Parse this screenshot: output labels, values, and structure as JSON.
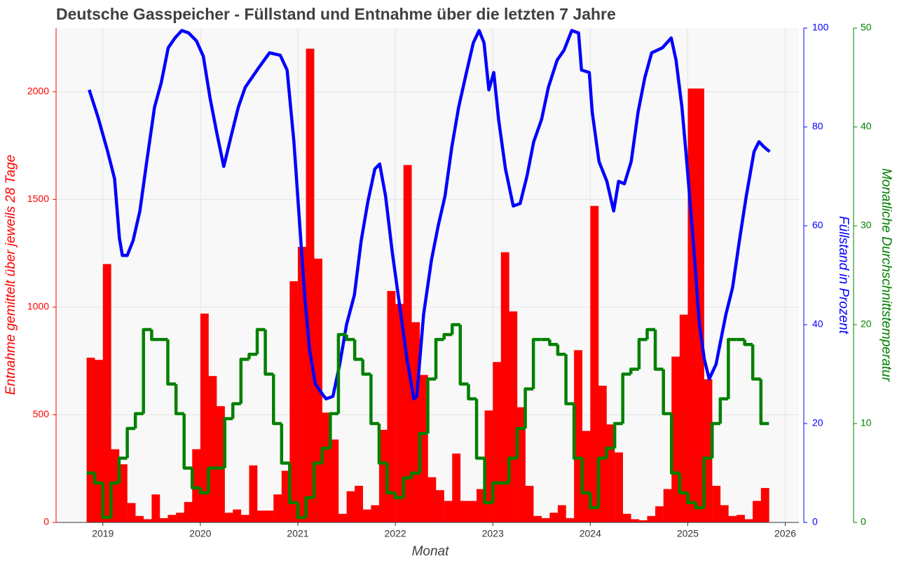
{
  "chart_data": {
    "type": "combo",
    "title": "Deutsche Gasspeicher - Füllstand und Entnahme über die letzten 7 Jahre",
    "xlabel": "Monat",
    "ylabel": "Entnahme gemittelt über jeweils 28 Tage",
    "y2label": "Füllstand in Prozent",
    "y3label": "Monatliche Durchschnittstemperatur",
    "xlim": [
      2018.52,
      2026.14
    ],
    "xticks": [
      2019,
      2020,
      2021,
      2022,
      2023,
      2024,
      2025,
      2026
    ],
    "ylim": [
      0,
      2296
    ],
    "yticks": [
      0,
      500,
      1000,
      1500,
      2000
    ],
    "y2lim": [
      0,
      100
    ],
    "y2ticks": [
      0,
      20,
      40,
      60,
      80,
      100
    ],
    "y3lim": [
      0,
      50
    ],
    "y3ticks": [
      0,
      10,
      20,
      30,
      40,
      50
    ],
    "grid": true,
    "y_color": "#ff0000",
    "y2_color": "#0000ff",
    "y3_color": "#008000",
    "x": [
      2018.875,
      2018.958,
      2019.042,
      2019.125,
      2019.208,
      2019.292,
      2019.375,
      2019.458,
      2019.542,
      2019.625,
      2019.708,
      2019.792,
      2019.875,
      2019.958,
      2020.042,
      2020.125,
      2020.208,
      2020.292,
      2020.375,
      2020.458,
      2020.542,
      2020.625,
      2020.708,
      2020.792,
      2020.875,
      2020.958,
      2021.042,
      2021.125,
      2021.208,
      2021.292,
      2021.375,
      2021.458,
      2021.542,
      2021.625,
      2021.708,
      2021.792,
      2021.875,
      2021.958,
      2022.042,
      2022.125,
      2022.208,
      2022.292,
      2022.375,
      2022.458,
      2022.542,
      2022.625,
      2022.708,
      2022.792,
      2022.875,
      2022.958,
      2023.042,
      2023.125,
      2023.208,
      2023.292,
      2023.375,
      2023.458,
      2023.542,
      2023.625,
      2023.708,
      2023.792,
      2023.875,
      2023.958,
      2024.042,
      2024.125,
      2024.208,
      2024.292,
      2024.375,
      2024.458,
      2024.542,
      2024.625,
      2024.708,
      2024.792,
      2024.875,
      2024.958,
      2025.042,
      2025.125,
      2025.208,
      2025.292,
      2025.375,
      2025.458,
      2025.542,
      2025.625,
      2025.708,
      2025.792
    ],
    "series": [
      {
        "type": "bar",
        "axis": "y",
        "color": "#ff0000",
        "values": [
          765,
          755,
          1200,
          340,
          270,
          90,
          30,
          15,
          130,
          20,
          35,
          45,
          95,
          340,
          970,
          680,
          540,
          45,
          60,
          35,
          265,
          55,
          55,
          130,
          240,
          1120,
          1280,
          2200,
          1225,
          510,
          385,
          40,
          145,
          170,
          60,
          80,
          430,
          1075,
          1015,
          1660,
          930,
          685,
          210,
          150,
          100,
          320,
          100,
          100,
          155,
          520,
          745,
          1255,
          980,
          535,
          170,
          30,
          20,
          45,
          80,
          20,
          800,
          425,
          1470,
          635,
          455,
          325,
          40,
          15,
          10,
          30,
          75,
          155,
          770,
          965,
          2015,
          2015,
          665,
          170,
          80,
          30,
          35,
          15,
          100,
          160
        ]
      },
      {
        "type": "line",
        "axis": "y2",
        "color": "#0000ff",
        "x": [
          2018.86,
          2018.95,
          2019.05,
          2019.12,
          2019.17,
          2019.2,
          2019.25,
          2019.31,
          2019.38,
          2019.45,
          2019.53,
          2019.6,
          2019.67,
          2019.74,
          2019.81,
          2019.88,
          2019.96,
          2020.03,
          2020.1,
          2020.17,
          2020.24,
          2020.32,
          2020.39,
          2020.46,
          2020.53,
          2020.6,
          2020.71,
          2020.82,
          2020.89,
          2020.96,
          2021.02,
          2021.07,
          2021.12,
          2021.18,
          2021.25,
          2021.29,
          2021.36,
          2021.43,
          2021.5,
          2021.58,
          2021.65,
          2021.72,
          2021.79,
          2021.84,
          2021.9,
          2021.97,
          2022.04,
          2022.12,
          2022.19,
          2022.22,
          2022.29,
          2022.37,
          2022.44,
          2022.51,
          2022.58,
          2022.65,
          2022.73,
          2022.8,
          2022.86,
          2022.91,
          2022.96,
          2023.01,
          2023.06,
          2023.13,
          2023.21,
          2023.28,
          2023.35,
          2023.42,
          2023.5,
          2023.57,
          2023.66,
          2023.73,
          2023.81,
          2023.88,
          2023.91,
          2023.99,
          2024.02,
          2024.09,
          2024.17,
          2024.24,
          2024.29,
          2024.35,
          2024.42,
          2024.49,
          2024.56,
          2024.63,
          2024.74,
          2024.83,
          2024.88,
          2024.94,
          2024.99,
          2025.06,
          2025.12,
          2025.17,
          2025.22,
          2025.29,
          2025.39,
          2025.46,
          2025.53,
          2025.6,
          2025.68,
          2025.73,
          2025.78,
          2025.84
        ],
        "values": [
          87.5,
          82,
          75,
          69.5,
          57.5,
          54,
          54,
          57,
          63,
          73,
          84,
          89,
          96,
          98,
          99.5,
          99,
          97.4,
          94.3,
          85.8,
          78.7,
          72,
          78.5,
          84,
          88,
          90,
          92,
          95,
          94.5,
          91.5,
          77,
          60,
          46,
          35,
          28,
          26,
          25,
          25.5,
          32,
          40,
          46,
          57,
          65,
          71.5,
          72.5,
          66,
          54.5,
          44.5,
          33,
          25,
          25.5,
          42,
          53,
          60,
          66,
          76,
          84,
          91,
          97,
          99.5,
          97,
          87.5,
          91,
          81.5,
          71.5,
          64,
          64.5,
          70,
          77,
          81.5,
          88,
          93.5,
          95.5,
          99.5,
          99,
          91.5,
          91,
          83,
          73,
          69,
          63,
          69,
          68.5,
          73,
          83,
          90,
          95,
          96,
          98,
          93.5,
          84,
          73,
          56,
          40,
          33,
          29,
          32,
          42,
          47.5,
          57,
          66,
          75,
          77,
          76,
          75
        ]
      },
      {
        "type": "step",
        "axis": "y3",
        "color": "#008000",
        "values": [
          5,
          4,
          0.5,
          4,
          6.5,
          9.5,
          11,
          19.5,
          18.5,
          18.5,
          14,
          11,
          5.5,
          3.5,
          3,
          5.5,
          5.5,
          10.5,
          12,
          16.5,
          17,
          19.5,
          15,
          10,
          6,
          2,
          0.5,
          2.5,
          6,
          7.5,
          11,
          19,
          18.5,
          16.5,
          15,
          10,
          6,
          3,
          2.5,
          4.5,
          5,
          9,
          14.5,
          18.5,
          19,
          20,
          14,
          12.5,
          6.5,
          2,
          4,
          4,
          6.5,
          9.5,
          13.5,
          18.5,
          18.5,
          18,
          17,
          12,
          6.5,
          3,
          1.5,
          6.5,
          7.5,
          10,
          15,
          15.5,
          18.5,
          19.5,
          15.5,
          11,
          5,
          3,
          2,
          1.5,
          6.5,
          10,
          12.5,
          18.5,
          18.5,
          18,
          14.5,
          10
        ]
      }
    ]
  }
}
